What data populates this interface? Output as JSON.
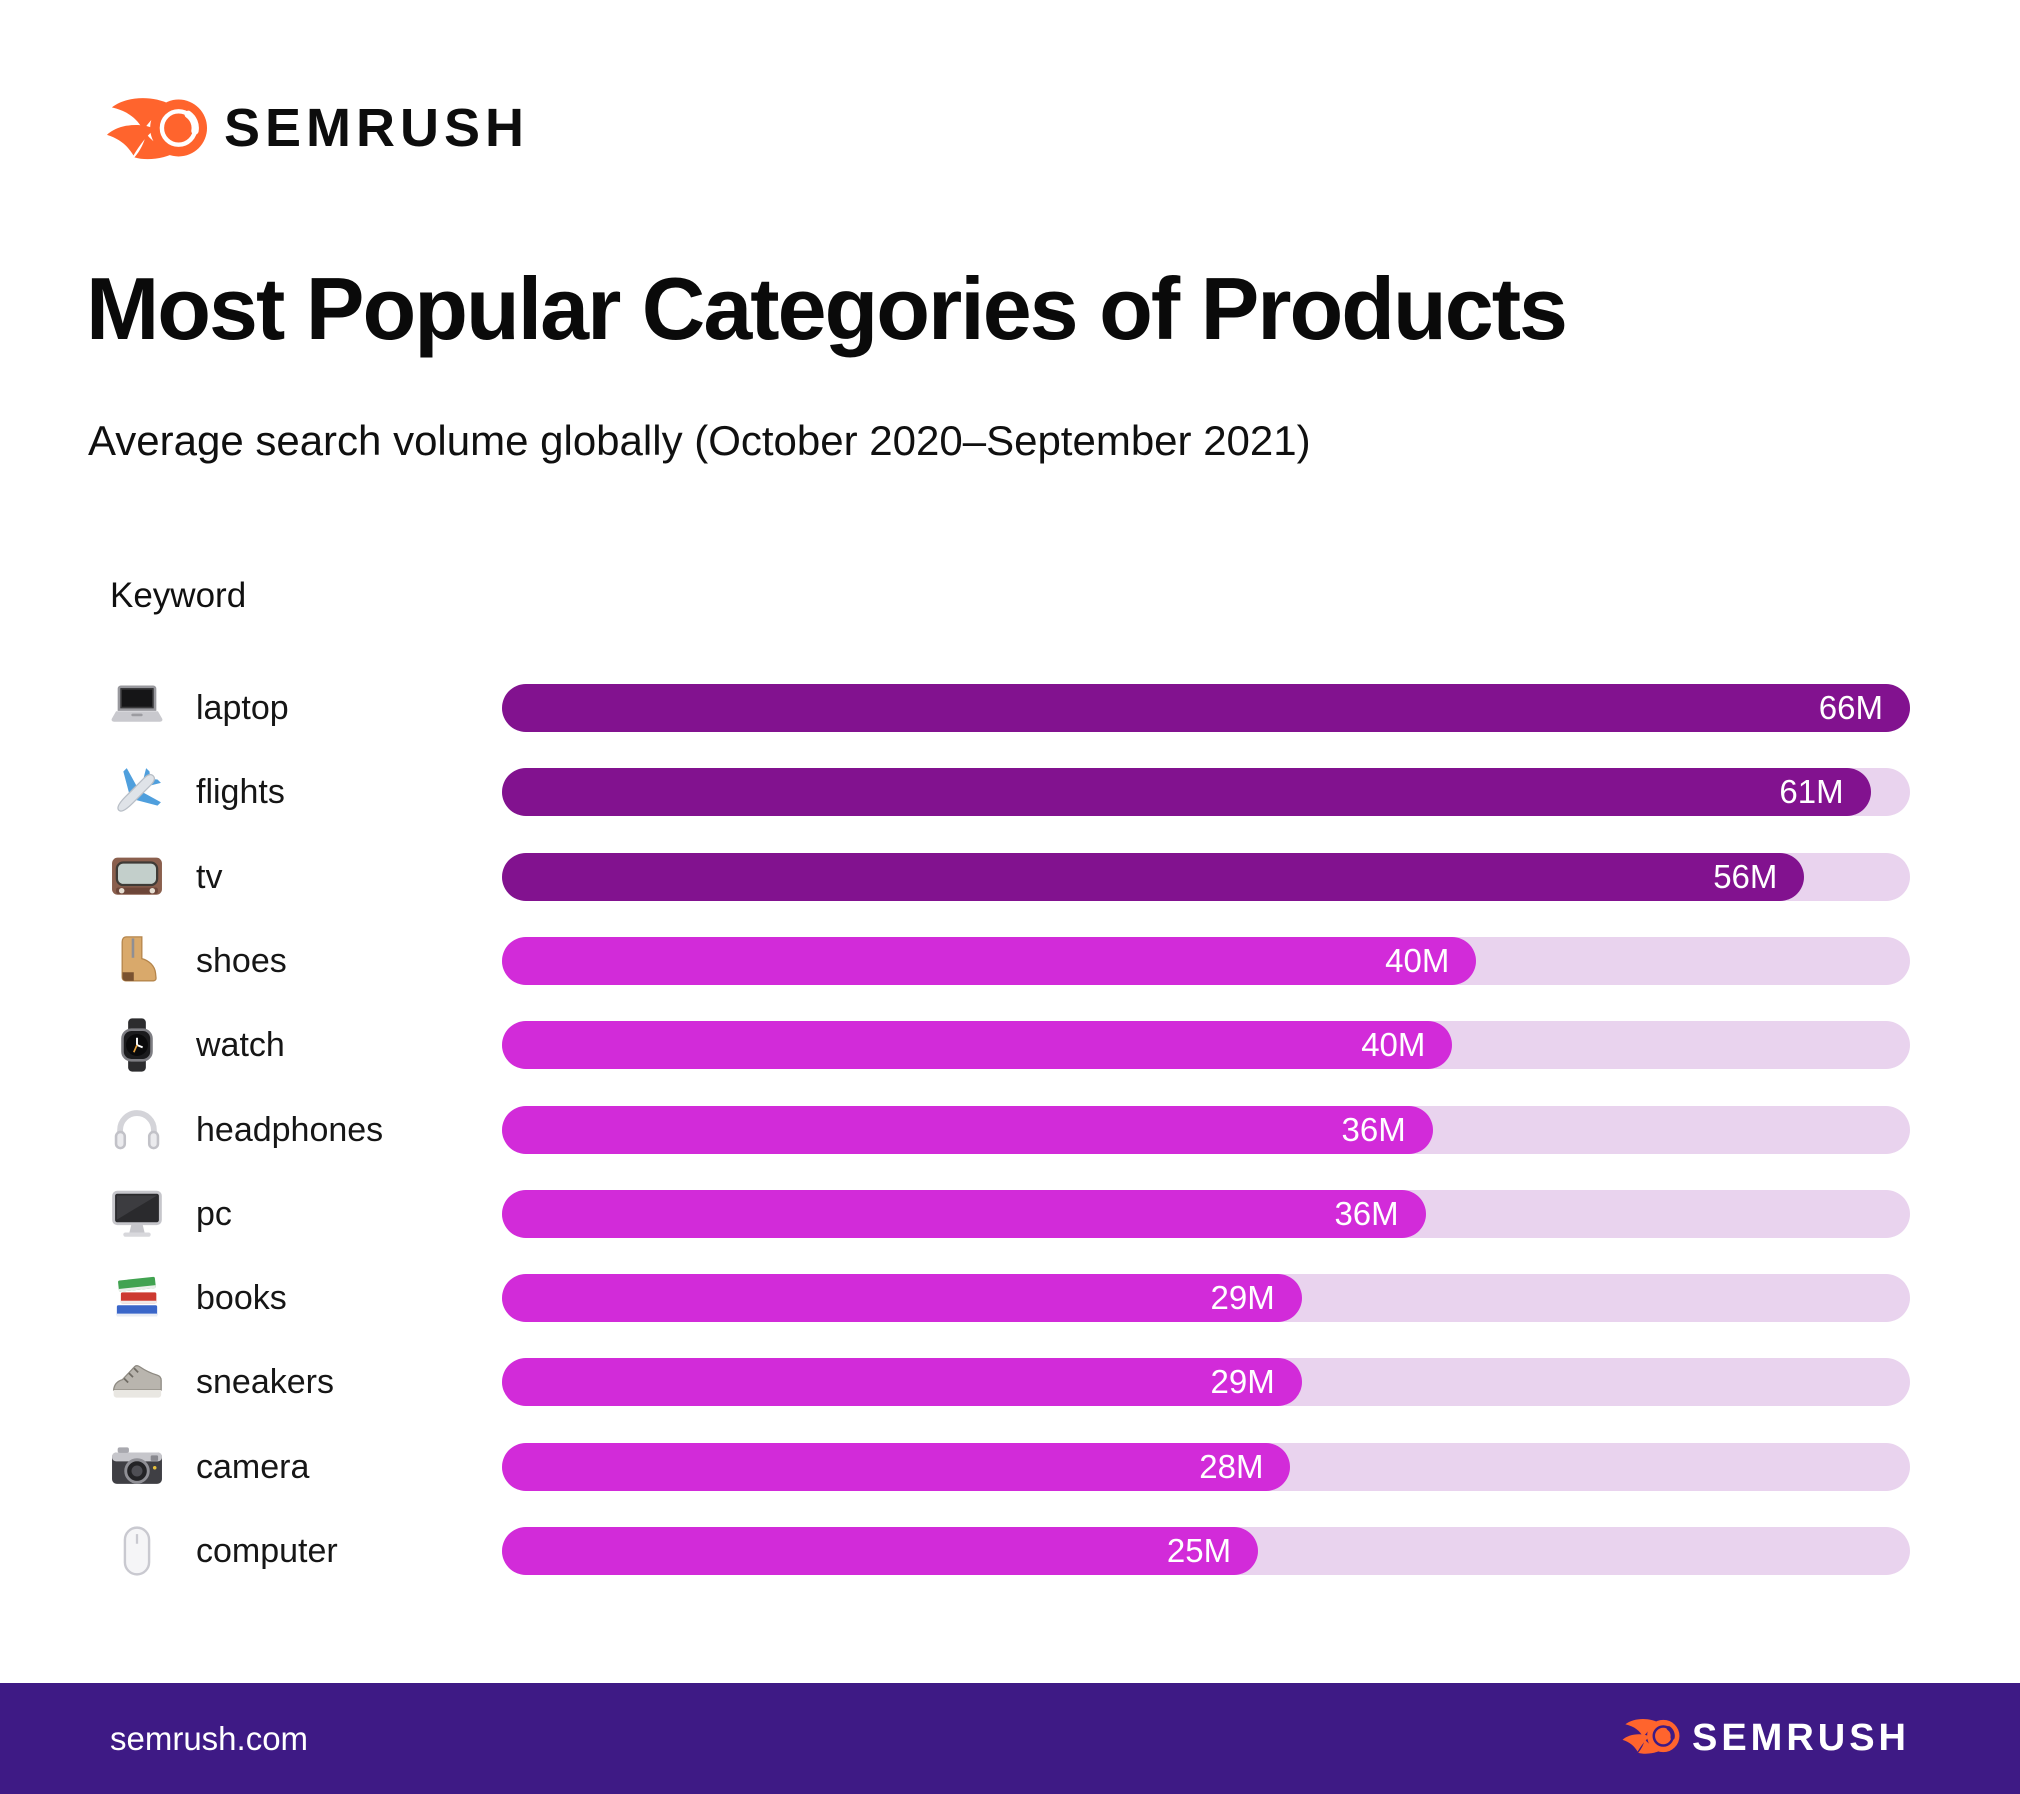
{
  "page": {
    "background": "#FFFFFF"
  },
  "header": {
    "logo": {
      "text": "SEMRUSH",
      "flame_color": "#FF642D",
      "text_color": "#0D0D0D"
    }
  },
  "title": "Most Popular Categories of Products",
  "subtitle": "Average search volume globally (October 2020–September 2021)",
  "column_header": "Keyword",
  "chart_data": {
    "type": "bar",
    "orientation": "horizontal",
    "value_unit": "average monthly searches, millions",
    "axis_max_millions": 66,
    "grid": false,
    "legend": false,
    "categories": [
      "laptop",
      "flights",
      "tv",
      "shoes",
      "watch",
      "headphones",
      "pc",
      "books",
      "sneakers",
      "camera",
      "computer"
    ],
    "values": [
      66,
      61,
      56,
      40,
      40,
      36,
      36,
      29,
      29,
      28,
      25
    ],
    "rows": [
      {
        "keyword": "laptop",
        "icon": "laptop-emoji",
        "value_label": "66M",
        "value_millions": 66,
        "width_pct": 100,
        "color_key": "dark_purple"
      },
      {
        "keyword": "flights",
        "icon": "airplane-emoji",
        "value_label": "61M",
        "value_millions": 61,
        "width_pct": 97.2,
        "color_key": "dark_purple"
      },
      {
        "keyword": "tv",
        "icon": "tv-emoji",
        "value_label": "56M",
        "value_millions": 56,
        "width_pct": 92.5,
        "color_key": "dark_purple"
      },
      {
        "keyword": "shoes",
        "icon": "boot-emoji",
        "value_label": "40M",
        "value_millions": 40,
        "width_pct": 69.2,
        "color_key": "magenta"
      },
      {
        "keyword": "watch",
        "icon": "watch-emoji",
        "value_label": "40M",
        "value_millions": 40,
        "width_pct": 67.5,
        "color_key": "magenta"
      },
      {
        "keyword": "headphones",
        "icon": "headphones-emoji",
        "value_label": "36M",
        "value_millions": 36,
        "width_pct": 66.1,
        "color_key": "magenta"
      },
      {
        "keyword": "pc",
        "icon": "desktop-computer-emoji",
        "value_label": "36M",
        "value_millions": 36,
        "width_pct": 65.6,
        "color_key": "magenta"
      },
      {
        "keyword": "books",
        "icon": "books-emoji",
        "value_label": "29M",
        "value_millions": 29,
        "width_pct": 56.8,
        "color_key": "magenta"
      },
      {
        "keyword": "sneakers",
        "icon": "sneaker-emoji",
        "value_label": "29M",
        "value_millions": 29,
        "width_pct": 56.8,
        "color_key": "magenta"
      },
      {
        "keyword": "camera",
        "icon": "camera-emoji",
        "value_label": "28M",
        "value_millions": 28,
        "width_pct": 56.0,
        "color_key": "magenta"
      },
      {
        "keyword": "computer",
        "icon": "computer-mouse-emoji",
        "value_label": "25M",
        "value_millions": 25,
        "width_pct": 53.7,
        "color_key": "magenta"
      }
    ],
    "colors": {
      "dark_purple": "#82128F",
      "magenta": "#D22BD9",
      "track": "#E9D3EE",
      "value_text": "#FFFFFF"
    }
  },
  "footer": {
    "url": "semrush.com",
    "logo_text": "SEMRUSH",
    "background": "#3E1A85",
    "flame_color": "#FF642D"
  }
}
